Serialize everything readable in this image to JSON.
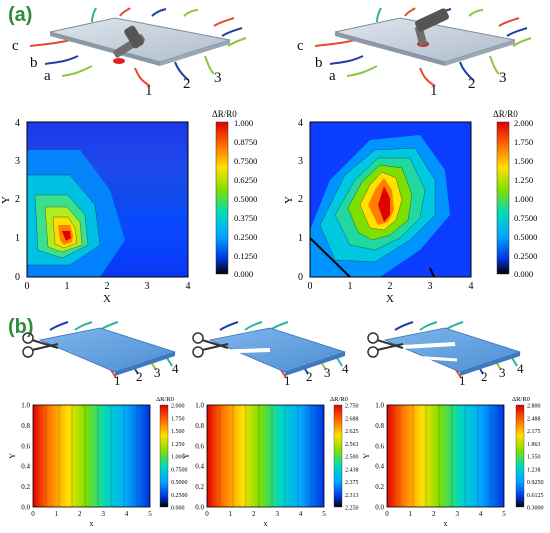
{
  "panel_labels": [
    "(a)",
    "(b)"
  ],
  "sketch_labels": {
    "left": [
      "c",
      "b",
      "a"
    ],
    "bottom": [
      "1",
      "2",
      "3"
    ],
    "cut_bottom": [
      "1",
      "2",
      "3",
      "4"
    ]
  },
  "colors": {
    "panel_label": "#2e8b3a",
    "sheet_top_a": "#c9d3dc",
    "sheet_top_b": "#5d9fe0",
    "wire_red": "#e84a2c",
    "wire_blue": "#1f3fa3",
    "wire_green": "#8dc63f",
    "wire_teal": "#2bb3a3",
    "hammer": "#6e6e6e"
  },
  "chart_data": [
    {
      "type": "heatmap",
      "id": "a-left",
      "xlabel": "X",
      "ylabel": "Y",
      "xlim": [
        0,
        4
      ],
      "ylim": [
        0,
        4
      ],
      "xticks": [
        "0",
        "1",
        "2",
        "3",
        "4"
      ],
      "yticks": [
        "0",
        "1",
        "2",
        "3",
        "4"
      ],
      "colorbar_title": "ΔR/R0",
      "colorbar_ticks": [
        "1.000",
        "0.8750",
        "0.7500",
        "0.6250",
        "0.5000",
        "0.3750",
        "0.2500",
        "0.1250",
        "0.000"
      ],
      "peak": {
        "x": 1,
        "y": 1,
        "value": 1.0
      }
    },
    {
      "type": "heatmap",
      "id": "a-right",
      "xlabel": "X",
      "ylabel": "Y",
      "xlim": [
        0,
        4
      ],
      "ylim": [
        0,
        4
      ],
      "xticks": [
        "0",
        "1",
        "2",
        "3",
        "4"
      ],
      "yticks": [
        "0",
        "1",
        "2",
        "3",
        "4"
      ],
      "colorbar_title": "ΔR/R0",
      "colorbar_ticks": [
        "2.000",
        "1.750",
        "1.500",
        "1.250",
        "1.000",
        "0.7500",
        "0.5000",
        "0.2500",
        "0.000"
      ],
      "peak": {
        "x": 2,
        "y": 2,
        "value": 2.0
      }
    },
    {
      "type": "heatmap",
      "id": "b-1",
      "xlabel": "x",
      "ylabel": "Y",
      "xlim": [
        0,
        5
      ],
      "ylim": [
        0,
        1
      ],
      "xticks": [
        "0",
        "1",
        "2",
        "3",
        "4",
        "5"
      ],
      "yticks": [
        "0.0",
        "0.2",
        "0.4",
        "0.6",
        "0.8",
        "1.0"
      ],
      "colorbar_title": "ΔR/R0",
      "colorbar_ticks": [
        "2.000",
        "1.750",
        "1.500",
        "1.250",
        "1.000",
        "0.7500",
        "0.5000",
        "0.2500",
        "0.000"
      ],
      "gradient": "x",
      "range": [
        0,
        2.0
      ]
    },
    {
      "type": "heatmap",
      "id": "b-2",
      "xlabel": "x",
      "ylabel": "Y",
      "xlim": [
        0,
        5
      ],
      "ylim": [
        0,
        1
      ],
      "xticks": [
        "0",
        "1",
        "2",
        "3",
        "4",
        "5"
      ],
      "yticks": [
        "0.0",
        "0.2",
        "0.4",
        "0.6",
        "0.8",
        "1.0"
      ],
      "colorbar_title": "ΔR/R0",
      "colorbar_ticks": [
        "2.750",
        "2.688",
        "2.625",
        "2.563",
        "2.500",
        "2.438",
        "2.375",
        "2.313",
        "2.250"
      ],
      "gradient": "x",
      "range": [
        2.25,
        2.75
      ]
    },
    {
      "type": "heatmap",
      "id": "b-3",
      "xlabel": "x",
      "ylabel": "Y",
      "xlim": [
        0,
        5
      ],
      "ylim": [
        0,
        1
      ],
      "xticks": [
        "0",
        "1",
        "2",
        "3",
        "4",
        "5"
      ],
      "yticks": [
        "0.0",
        "0.2",
        "0.4",
        "0.6",
        "0.8",
        "1.0"
      ],
      "colorbar_title": "ΔR/R0",
      "colorbar_ticks": [
        "2.800",
        "2.488",
        "2.175",
        "1.863",
        "1.550",
        "1.238",
        "0.9250",
        "0.6125",
        "0.3000"
      ],
      "gradient": "x",
      "range": [
        0.3,
        2.8
      ]
    }
  ]
}
